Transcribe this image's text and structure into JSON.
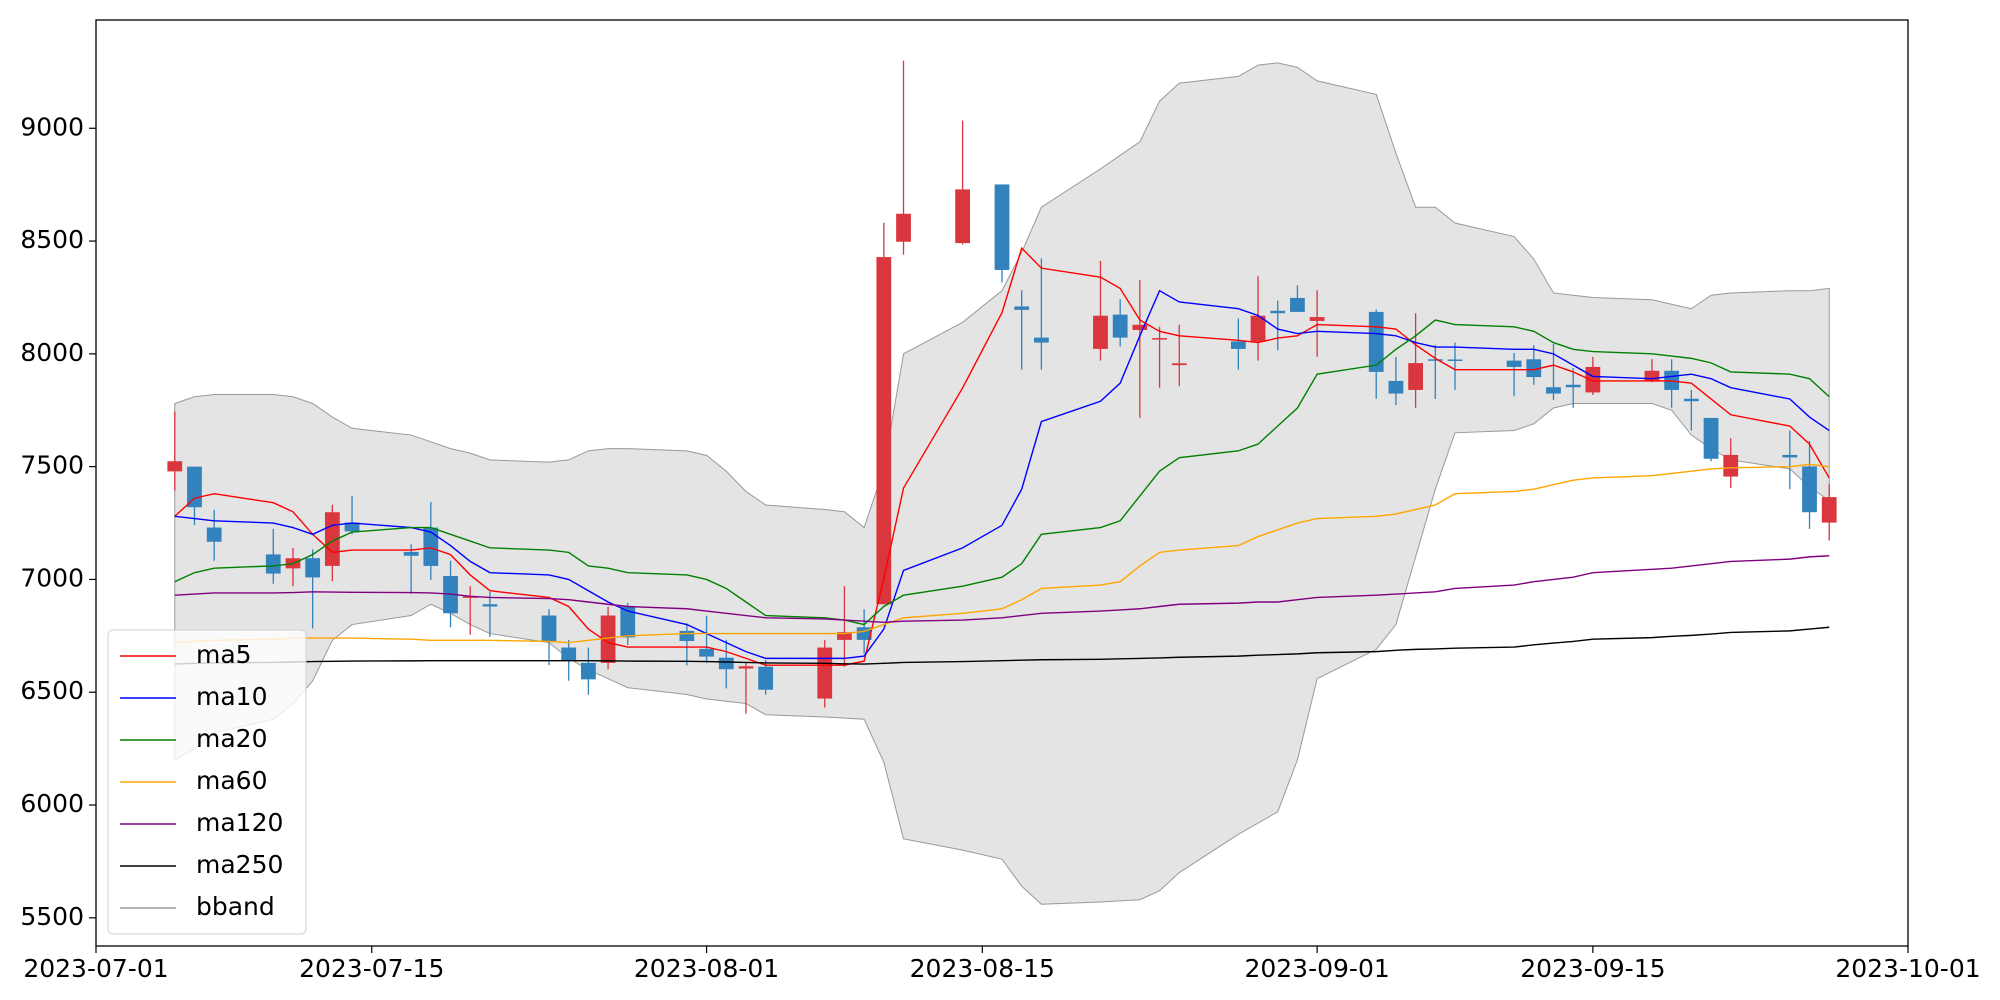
{
  "chart_data": {
    "type": "candlestick",
    "x": [
      "2023-07-05",
      "2023-07-06",
      "2023-07-07",
      "2023-07-10",
      "2023-07-11",
      "2023-07-12",
      "2023-07-13",
      "2023-07-14",
      "2023-07-17",
      "2023-07-18",
      "2023-07-19",
      "2023-07-20",
      "2023-07-21",
      "2023-07-24",
      "2023-07-25",
      "2023-07-26",
      "2023-07-27",
      "2023-07-28",
      "2023-07-31",
      "2023-08-01",
      "2023-08-02",
      "2023-08-03",
      "2023-08-04",
      "2023-08-07",
      "2023-08-08",
      "2023-08-09",
      "2023-08-10",
      "2023-08-11",
      "2023-08-14",
      "2023-08-16",
      "2023-08-17",
      "2023-08-18",
      "2023-08-21",
      "2023-08-22",
      "2023-08-23",
      "2023-08-24",
      "2023-08-25",
      "2023-08-28",
      "2023-08-29",
      "2023-08-30",
      "2023-08-31",
      "2023-09-01",
      "2023-09-04",
      "2023-09-05",
      "2023-09-06",
      "2023-09-07",
      "2023-09-08",
      "2023-09-11",
      "2023-09-12",
      "2023-09-13",
      "2023-09-14",
      "2023-09-15",
      "2023-09-18",
      "2023-09-19",
      "2023-09-20",
      "2023-09-21",
      "2023-09-22",
      "2023-09-25",
      "2023-09-26",
      "2023-09-27"
    ],
    "open": [
      7479,
      7500,
      7230,
      7111,
      7049,
      7094,
      7060,
      7252,
      7122,
      7230,
      7015,
      6920,
      6890,
      6840,
      6698,
      6630,
      6630,
      6879,
      6772,
      6692,
      6653,
      6605,
      6613,
      6472,
      6732,
      6788,
      6890,
      8497,
      8491,
      8751,
      8210,
      8072,
      8022,
      8174,
      8106,
      8065,
      7950,
      8055,
      8055,
      8191,
      8248,
      8146,
      8186,
      7880,
      7840,
      7976,
      7975,
      7970,
      7976,
      7852,
      7863,
      7829,
      7880,
      7925,
      7801,
      7716,
      7456,
      7552,
      7501,
      7252
    ],
    "high": [
      7744,
      7500,
      7309,
      7224,
      7139,
      7133,
      7331,
      7371,
      7156,
      7343,
      7083,
      6970,
      6945,
      6868,
      6732,
      6698,
      6879,
      6896,
      6805,
      6839,
      6732,
      6630,
      6642,
      6732,
      6970,
      6868,
      8581,
      9300,
      9034,
      8751,
      8282,
      8423,
      8412,
      8242,
      8327,
      8120,
      8129,
      8157,
      8344,
      8236,
      8304,
      8282,
      8197,
      7987,
      8180,
      8040,
      8050,
      8004,
      8038,
      8044,
      7937,
      7987,
      7976,
      7976,
      7840,
      7716,
      7626,
      7660,
      7614,
      7422
    ],
    "low": [
      7394,
      7241,
      7083,
      6981,
      6970,
      6783,
      6992,
      7200,
      6936,
      6998,
      6788,
      6755,
      6745,
      6620,
      6551,
      6489,
      6602,
      6709,
      6619,
      6630,
      6517,
      6405,
      6489,
      6432,
      6613,
      6670,
      6890,
      8440,
      8485,
      8316,
      7930,
      7930,
      7970,
      8033,
      7716,
      7850,
      7857,
      7930,
      7970,
      8016,
      8186,
      7987,
      7801,
      7773,
      7761,
      7800,
      7840,
      7812,
      7863,
      7795,
      7761,
      7818,
      7874,
      7761,
      7660,
      7524,
      7405,
      7400,
      7224,
      7173
    ],
    "close": [
      7524,
      7320,
      7167,
      7026,
      7094,
      7009,
      7298,
      7213,
      7105,
      7060,
      6850,
      6925,
      6880,
      6727,
      6641,
      6557,
      6840,
      6743,
      6727,
      6658,
      6602,
      6615,
      6511,
      6698,
      6766,
      6732,
      8429,
      8621,
      8729,
      8372,
      8195,
      8050,
      8169,
      8072,
      8129,
      8070,
      7958,
      8022,
      8169,
      8180,
      8186,
      8163,
      7920,
      7824,
      7959,
      7970,
      7970,
      7942,
      7897,
      7824,
      7852,
      7942,
      7925,
      7840,
      7790,
      7535,
      7552,
      7541,
      7298,
      7365
    ],
    "up_color": "#d9363e",
    "down_color": "#3182bd",
    "series": [
      {
        "name": "ma5",
        "color": "#ff0000",
        "values": [
          7280,
          7360,
          7380,
          7340,
          7300,
          7200,
          7120,
          7130,
          7130,
          7140,
          7110,
          7020,
          6950,
          6920,
          6880,
          6780,
          6720,
          6700,
          6700,
          6700,
          6680,
          6650,
          6620,
          6620,
          6620,
          6638,
          7004,
          7405,
          7849,
          8183,
          8469,
          8380,
          8340,
          8290,
          8150,
          8100,
          8080,
          8060,
          8050,
          8070,
          8080,
          8130,
          8120,
          8110,
          8040,
          7980,
          7930,
          7930,
          7930,
          7950,
          7920,
          7880,
          7880,
          7880,
          7870,
          7800,
          7730,
          7680,
          7600,
          7450
        ]
      },
      {
        "name": "ma10",
        "color": "#0000ff",
        "values": [
          7280,
          7270,
          7260,
          7250,
          7230,
          7200,
          7240,
          7250,
          7230,
          7210,
          7150,
          7080,
          7030,
          7020,
          7000,
          6950,
          6900,
          6860,
          6800,
          6760,
          6720,
          6680,
          6650,
          6650,
          6650,
          6660,
          6780,
          7040,
          7140,
          7240,
          7400,
          7700,
          7790,
          7870,
          8080,
          8280,
          8230,
          8200,
          8170,
          8110,
          8090,
          8100,
          8090,
          8080,
          8050,
          8030,
          8030,
          8020,
          8020,
          8000,
          7950,
          7900,
          7890,
          7900,
          7910,
          7890,
          7850,
          7800,
          7720,
          7660
        ]
      },
      {
        "name": "ma20",
        "color": "#008000",
        "values": [
          6990,
          7030,
          7050,
          7060,
          7070,
          7110,
          7170,
          7210,
          7230,
          7230,
          7200,
          7170,
          7140,
          7130,
          7120,
          7060,
          7050,
          7030,
          7020,
          7000,
          6960,
          6900,
          6840,
          6830,
          6820,
          6800,
          6880,
          6930,
          6970,
          7010,
          7070,
          7200,
          7230,
          7260,
          7370,
          7480,
          7540,
          7570,
          7600,
          7680,
          7760,
          7910,
          7950,
          8020,
          8080,
          8150,
          8130,
          8120,
          8100,
          8050,
          8020,
          8010,
          8000,
          7990,
          7980,
          7960,
          7920,
          7910,
          7890,
          7810
        ]
      },
      {
        "name": "ma60",
        "color": "#ffa500",
        "values": [
          6720,
          6725,
          6730,
          6735,
          6740,
          6740,
          6740,
          6740,
          6735,
          6730,
          6730,
          6730,
          6730,
          6725,
          6720,
          6730,
          6740,
          6750,
          6760,
          6760,
          6760,
          6760,
          6760,
          6760,
          6760,
          6770,
          6800,
          6830,
          6850,
          6870,
          6910,
          6960,
          6975,
          6990,
          7060,
          7120,
          7130,
          7150,
          7190,
          7220,
          7250,
          7270,
          7280,
          7290,
          7310,
          7330,
          7380,
          7390,
          7400,
          7420,
          7440,
          7450,
          7460,
          7470,
          7480,
          7490,
          7495,
          7500,
          7510,
          7500
        ]
      },
      {
        "name": "ma120",
        "color": "#800080",
        "values": [
          6930,
          6935,
          6940,
          6940,
          6942,
          6945,
          6944,
          6943,
          6942,
          6940,
          6935,
          6925,
          6920,
          6915,
          6910,
          6900,
          6890,
          6880,
          6870,
          6860,
          6850,
          6840,
          6830,
          6825,
          6820,
          6815,
          6810,
          6815,
          6820,
          6830,
          6840,
          6850,
          6860,
          6865,
          6870,
          6880,
          6890,
          6895,
          6900,
          6900,
          6910,
          6920,
          6930,
          6935,
          6940,
          6945,
          6960,
          6975,
          6990,
          7000,
          7010,
          7030,
          7045,
          7050,
          7060,
          7070,
          7080,
          7090,
          7100,
          7105
        ]
      },
      {
        "name": "ma250",
        "color": "#000000",
        "values": [
          6625,
          6628,
          6630,
          6632,
          6634,
          6636,
          6637,
          6638,
          6639,
          6640,
          6640,
          6640,
          6640,
          6640,
          6640,
          6640,
          6639,
          6638,
          6637,
          6636,
          6634,
          6632,
          6630,
          6628,
          6626,
          6625,
          6628,
          6632,
          6636,
          6640,
          6642,
          6644,
          6646,
          6648,
          6650,
          6652,
          6655,
          6660,
          6664,
          6667,
          6670,
          6675,
          6680,
          6686,
          6690,
          6692,
          6695,
          6700,
          6710,
          6718,
          6725,
          6735,
          6742,
          6748,
          6752,
          6758,
          6765,
          6772,
          6780,
          6788
        ]
      }
    ],
    "bband": {
      "name": "bband",
      "color": "#999999",
      "fill": "#e4e4e4",
      "upper": [
        7780,
        7810,
        7820,
        7820,
        7810,
        7780,
        7720,
        7670,
        7640,
        7610,
        7580,
        7560,
        7530,
        7520,
        7530,
        7570,
        7580,
        7580,
        7570,
        7550,
        7480,
        7390,
        7330,
        7310,
        7300,
        7230,
        7490,
        8000,
        8140,
        8280,
        8450,
        8650,
        8820,
        8880,
        8940,
        9120,
        9200,
        9230,
        9280,
        9290,
        9270,
        9210,
        9150,
        8890,
        8650,
        8650,
        8580,
        8520,
        8420,
        8270,
        8260,
        8250,
        8240,
        8220,
        8200,
        8260,
        8270,
        8280,
        8280,
        8290
      ],
      "lower": [
        6200,
        6250,
        6320,
        6380,
        6450,
        6550,
        6730,
        6800,
        6840,
        6890,
        6850,
        6800,
        6760,
        6720,
        6650,
        6600,
        6560,
        6520,
        6490,
        6470,
        6460,
        6450,
        6400,
        6390,
        6385,
        6380,
        6190,
        5850,
        5800,
        5760,
        5640,
        5560,
        5570,
        5575,
        5580,
        5620,
        5700,
        5870,
        5920,
        5970,
        6200,
        6560,
        6690,
        6800,
        7100,
        7400,
        7650,
        7660,
        7690,
        7760,
        7780,
        7780,
        7780,
        7750,
        7640,
        7580,
        7530,
        7490,
        7410,
        7350
      ]
    },
    "xlim": [
      "2023-07-01",
      "2023-10-01"
    ],
    "xticks": [
      "2023-07-01",
      "2023-07-15",
      "2023-08-01",
      "2023-08-15",
      "2023-09-01",
      "2023-09-15",
      "2023-10-01"
    ],
    "ylim": [
      5375,
      9480
    ],
    "yticks": [
      5500,
      6000,
      6500,
      7000,
      7500,
      8000,
      8500,
      9000
    ],
    "legend": "lower left"
  }
}
